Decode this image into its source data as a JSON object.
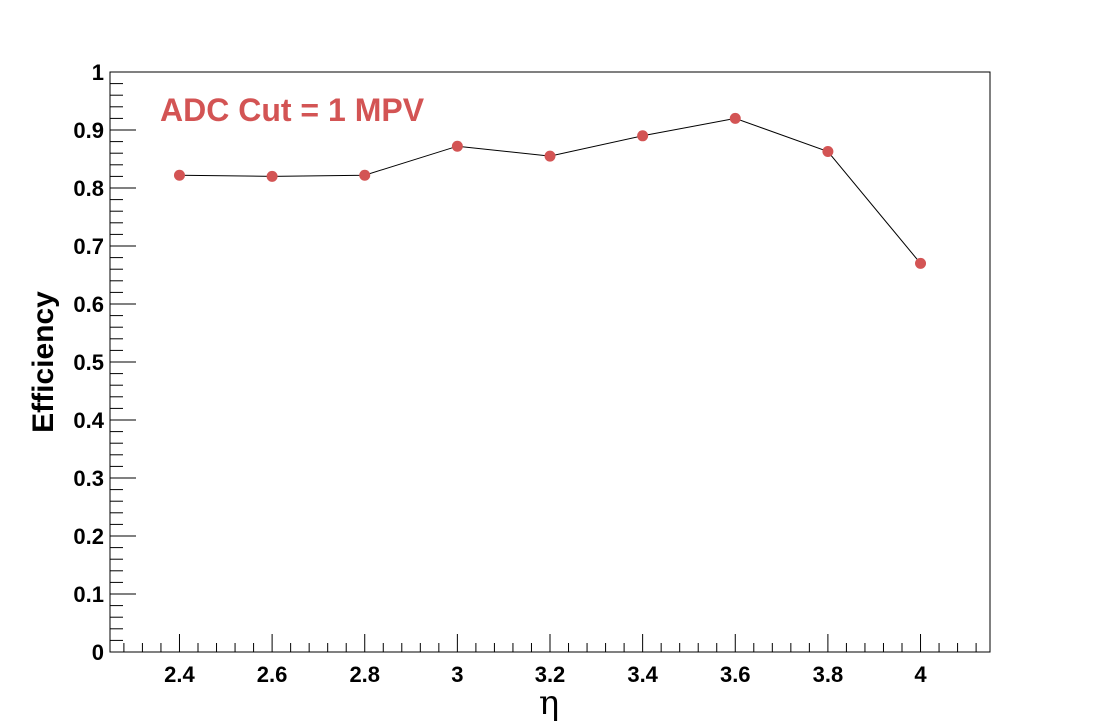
{
  "chart_data": {
    "type": "line",
    "title": "",
    "xlabel": "η",
    "ylabel": "Efficiency",
    "xlim": [
      2.25,
      4.15
    ],
    "ylim": [
      0,
      1
    ],
    "x_ticks": [
      2.4,
      2.6,
      2.8,
      3,
      3.2,
      3.4,
      3.6,
      3.8,
      4
    ],
    "x_tick_labels": [
      "2.4",
      "2.6",
      "2.8",
      "3",
      "3.2",
      "3.4",
      "3.6",
      "3.8",
      "4"
    ],
    "y_ticks": [
      0,
      0.1,
      0.2,
      0.3,
      0.4,
      0.5,
      0.6,
      0.7,
      0.8,
      0.9,
      1
    ],
    "y_tick_labels": [
      "0",
      "0.1",
      "0.2",
      "0.3",
      "0.4",
      "0.5",
      "0.6",
      "0.7",
      "0.8",
      "0.9",
      "1"
    ],
    "grid": false,
    "annotation": "ADC Cut = 1 MPV",
    "series": [
      {
        "x": [
          2.4,
          2.6,
          2.8,
          3.0,
          3.2,
          3.4,
          3.6,
          3.8,
          4.0
        ],
        "y": [
          0.822,
          0.82,
          0.822,
          0.872,
          0.855,
          0.89,
          0.92,
          0.863,
          0.67
        ]
      }
    ]
  },
  "colors": {
    "marker": "#d35454",
    "line": "#000000",
    "annotation": "#d35454",
    "frame": "#000000"
  }
}
